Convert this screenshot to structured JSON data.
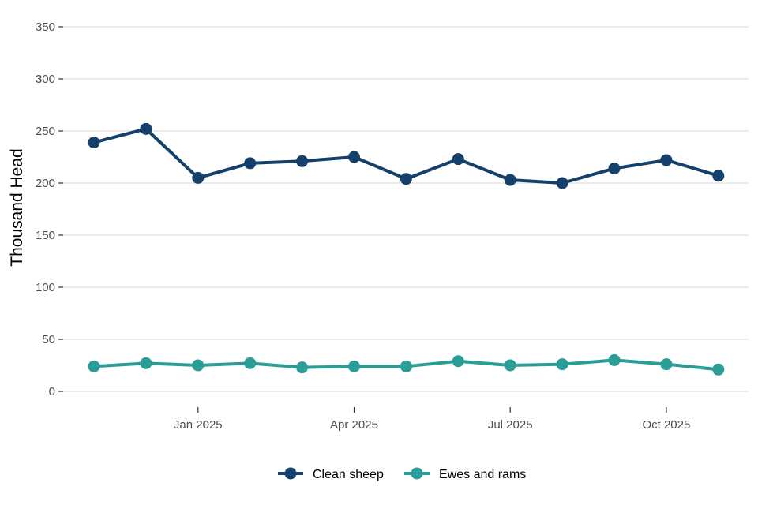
{
  "chart_data": {
    "type": "line",
    "ylabel": "Thousand Head",
    "ylim": [
      0,
      350
    ],
    "yticks": [
      0,
      50,
      100,
      150,
      200,
      250,
      300,
      350
    ],
    "x": [
      "2024-11",
      "2024-12",
      "2025-01",
      "2025-02",
      "2025-03",
      "2025-04",
      "2025-05",
      "2025-06",
      "2025-07",
      "2025-08",
      "2025-09",
      "2025-10",
      "2025-11"
    ],
    "xticks": [
      {
        "x": "2025-01",
        "label": "Jan 2025"
      },
      {
        "x": "2025-04",
        "label": "Apr 2025"
      },
      {
        "x": "2025-07",
        "label": "Jul 2025"
      },
      {
        "x": "2025-10",
        "label": "Oct 2025"
      }
    ],
    "grid": true,
    "legend_position": "bottom",
    "series": [
      {
        "name": "Clean sheep",
        "color": "#14406b",
        "values": [
          239,
          252,
          205,
          219,
          221,
          225,
          204,
          223,
          203,
          200,
          214,
          222,
          207
        ]
      },
      {
        "name": "Ewes and rams",
        "color": "#2a9d96",
        "values": [
          24,
          27,
          25,
          27,
          23,
          24,
          24,
          29,
          25,
          26,
          30,
          26,
          21
        ]
      }
    ]
  }
}
